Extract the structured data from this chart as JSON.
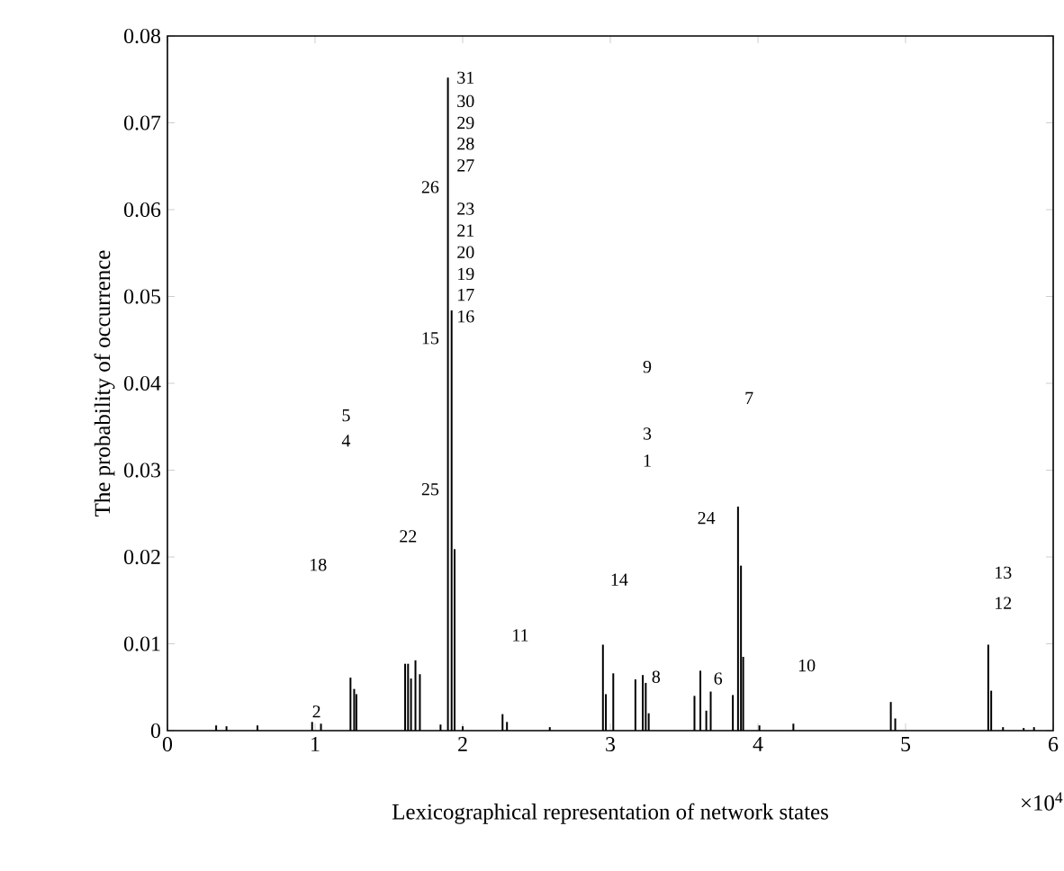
{
  "chart_data": {
    "type": "bar",
    "xlabel": "Lexicographical representation of network states",
    "ylabel": "The probability of occurrence",
    "color": "#000000",
    "x": [
      0.33,
      0.4,
      0.61,
      0.98,
      1.04,
      1.24,
      1.265,
      1.28,
      1.61,
      1.63,
      1.65,
      1.68,
      1.71,
      1.85,
      1.9,
      1.925,
      1.945,
      2.0,
      2.27,
      2.3,
      2.59,
      2.95,
      2.97,
      3.02,
      3.17,
      3.22,
      3.24,
      3.26,
      3.57,
      3.61,
      3.65,
      3.68,
      3.83,
      3.865,
      3.885,
      3.9,
      4.01,
      4.24,
      4.9,
      4.93,
      5.56,
      5.58,
      5.66,
      5.8,
      5.87
    ],
    "values": [
      0.0006,
      0.0005,
      0.0006,
      0.001,
      0.0008,
      0.0061,
      0.0048,
      0.0042,
      0.0077,
      0.0077,
      0.006,
      0.0081,
      0.0065,
      0.0007,
      0.0752,
      0.0484,
      0.0209,
      0.0005,
      0.0019,
      0.001,
      0.0004,
      0.0099,
      0.0042,
      0.0066,
      0.0059,
      0.0064,
      0.0055,
      0.002,
      0.004,
      0.0069,
      0.0023,
      0.0045,
      0.0041,
      0.0258,
      0.019,
      0.0085,
      0.0006,
      0.0008,
      0.0033,
      0.0014,
      0.0099,
      0.0046,
      0.0004,
      0.0003,
      0.0004
    ],
    "xlim": [
      0,
      6
    ],
    "ylim": [
      0,
      0.08
    ],
    "xticks": [
      0,
      1,
      2,
      3,
      4,
      5,
      6
    ],
    "yticks": [
      0,
      0.01,
      0.02,
      0.03,
      0.04,
      0.05,
      0.06,
      0.07,
      0.08
    ],
    "grid": false,
    "annotations": [
      "×10$^{4}$",
      "31",
      "30",
      "29",
      "28",
      "27",
      "26",
      "23",
      "21",
      "20",
      "19",
      "17",
      "16",
      "15",
      "5",
      "4",
      "25",
      "22",
      "18",
      "11",
      "2",
      "9",
      "7",
      "3",
      "1",
      "24",
      "14",
      "13",
      "12",
      "10",
      "8",
      "6"
    ]
  }
}
